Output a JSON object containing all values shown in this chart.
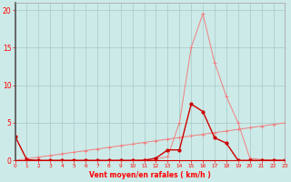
{
  "x": [
    0,
    1,
    2,
    3,
    4,
    5,
    6,
    7,
    8,
    9,
    10,
    11,
    12,
    13,
    14,
    15,
    16,
    17,
    18,
    19,
    20,
    21,
    22,
    23
  ],
  "line_rafales": [
    0,
    0,
    0,
    0,
    0,
    0,
    0,
    0,
    0,
    0,
    0,
    0.1,
    0.2,
    0.5,
    5.0,
    15.0,
    19.5,
    13.0,
    8.5,
    5.0,
    0.3,
    0.1,
    0.05,
    0.05
  ],
  "line_diagonal": [
    0,
    0.22,
    0.44,
    0.65,
    0.87,
    1.09,
    1.3,
    1.52,
    1.74,
    1.96,
    2.17,
    2.39,
    2.61,
    2.83,
    3.04,
    3.26,
    3.48,
    3.7,
    3.91,
    4.13,
    4.35,
    4.57,
    4.78,
    5.0
  ],
  "line_dark": [
    3.2,
    0.1,
    0,
    0,
    0,
    0,
    0,
    0,
    0,
    0,
    0,
    0,
    0.3,
    1.4,
    1.4,
    7.5,
    6.5,
    3.0,
    2.3,
    0.0,
    0.0,
    0.0,
    0.0,
    0.0
  ],
  "color_light": "#f08080",
  "color_dark": "#cc0000",
  "bg_color": "#cceae8",
  "grid_color": "#a8c8c8",
  "xlabel": "Vent moyen/en rafales ( km/h )",
  "ylabel_ticks": [
    0,
    5,
    10,
    15,
    20
  ],
  "xlim": [
    0,
    23
  ],
  "ylim": [
    0,
    21
  ]
}
